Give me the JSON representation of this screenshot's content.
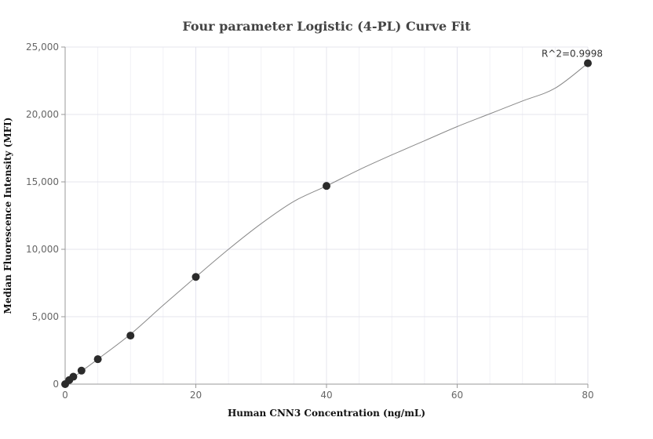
{
  "chart_data": {
    "type": "scatter",
    "title": "Four parameter Logistic (4-PL) Curve Fit",
    "xlabel": "Human CNN3 Concentration (ng/mL)",
    "ylabel": "Median Fluorescence Intensity (MFI)",
    "xlim": [
      0,
      80
    ],
    "ylim": [
      0,
      25000
    ],
    "x_ticks": [
      0,
      20,
      40,
      60,
      80
    ],
    "x_tick_labels": [
      "0",
      "20",
      "40",
      "60",
      "80"
    ],
    "y_ticks": [
      0,
      5000,
      10000,
      15000,
      20000,
      25000
    ],
    "y_tick_labels": [
      "0",
      "5,000",
      "10,000",
      "15,000",
      "20,000",
      "25,000"
    ],
    "grid": true,
    "series": [
      {
        "type": "scatter",
        "x": [
          0,
          0.625,
          1.25,
          2.5,
          5,
          10,
          20,
          40,
          80
        ],
        "y": [
          0,
          300,
          550,
          1000,
          1850,
          3600,
          7950,
          14700,
          23800
        ]
      },
      {
        "type": "line",
        "x": [
          0,
          2.5,
          5,
          10,
          15,
          20,
          25,
          30,
          35,
          40,
          45,
          50,
          55,
          60,
          65,
          70,
          75,
          80
        ],
        "y": [
          0,
          950,
          1850,
          3700,
          5850,
          7950,
          10000,
          11900,
          13550,
          14700,
          15900,
          17000,
          18050,
          19100,
          20050,
          21000,
          21950,
          23800
        ]
      }
    ],
    "annotations": [
      {
        "text": "R^2=0.9998",
        "x": 80,
        "y": 23800
      }
    ],
    "colors": {
      "points": "#2b2b2b",
      "curve": "#888888",
      "grid_major": "#e4e4ee",
      "grid_minor": "#f1f1f6",
      "axis": "#999999"
    }
  }
}
